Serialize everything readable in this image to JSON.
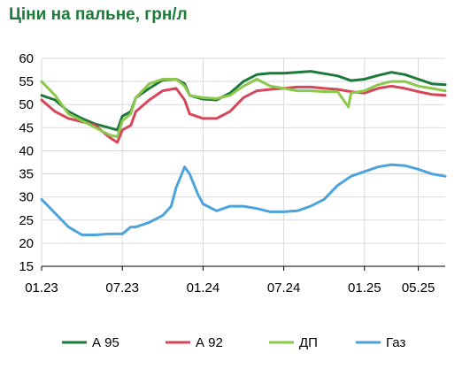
{
  "chart_data": {
    "type": "line",
    "title": "Ціни на пальне, грн/л",
    "xlabel": "",
    "ylabel": "",
    "ylim": [
      15,
      60
    ],
    "yticks": [
      15,
      20,
      25,
      30,
      35,
      40,
      45,
      50,
      55,
      60
    ],
    "xlim": [
      "2023-01",
      "2025-07"
    ],
    "xticks": [
      {
        "label": "01.23",
        "x": "2023-01"
      },
      {
        "label": "07.23",
        "x": "2023-07"
      },
      {
        "label": "01.24",
        "x": "2024-01"
      },
      {
        "label": "07.24",
        "x": "2024-07"
      },
      {
        "label": "01.25",
        "x": "2025-01"
      },
      {
        "label": "05.25",
        "x": "2025-05"
      }
    ],
    "grid": true,
    "legend": "bottom",
    "series": [
      {
        "name": "А 95",
        "color": "#1e7a3a",
        "points": [
          [
            "2023-01",
            52.0
          ],
          [
            "2023-02",
            51.0
          ],
          [
            "2023-03",
            48.5
          ],
          [
            "2023-04",
            47.0
          ],
          [
            "2023-05",
            45.8
          ],
          [
            "2023-06",
            45.0
          ],
          [
            "2023-06-20",
            44.5
          ],
          [
            "2023-07",
            47.5
          ],
          [
            "2023-07-20",
            48.5
          ],
          [
            "2023-08",
            51.5
          ],
          [
            "2023-09",
            53.5
          ],
          [
            "2023-10",
            55.3
          ],
          [
            "2023-11",
            55.5
          ],
          [
            "2023-11-20",
            54.5
          ],
          [
            "2023-12",
            52.0
          ],
          [
            "2024-01",
            51.2
          ],
          [
            "2024-02",
            51.0
          ],
          [
            "2024-03",
            52.5
          ],
          [
            "2024-04",
            55.0
          ],
          [
            "2024-05",
            56.5
          ],
          [
            "2024-06",
            56.8
          ],
          [
            "2024-07",
            56.8
          ],
          [
            "2024-08",
            57.0
          ],
          [
            "2024-09",
            57.2
          ],
          [
            "2024-10",
            56.7
          ],
          [
            "2024-11",
            56.2
          ],
          [
            "2024-12",
            55.2
          ],
          [
            "2025-01",
            55.5
          ],
          [
            "2025-02",
            56.3
          ],
          [
            "2025-03",
            57.0
          ],
          [
            "2025-04",
            56.5
          ],
          [
            "2025-05",
            55.5
          ],
          [
            "2025-06",
            54.5
          ],
          [
            "2025-07",
            54.3
          ]
        ]
      },
      {
        "name": "А 92",
        "color": "#d6465a",
        "points": [
          [
            "2023-01",
            51.0
          ],
          [
            "2023-02",
            48.5
          ],
          [
            "2023-03",
            47.0
          ],
          [
            "2023-04",
            46.3
          ],
          [
            "2023-05",
            45.5
          ],
          [
            "2023-06",
            43.0
          ],
          [
            "2023-06-20",
            41.8
          ],
          [
            "2023-07",
            44.5
          ],
          [
            "2023-07-20",
            45.5
          ],
          [
            "2023-08",
            48.5
          ],
          [
            "2023-09",
            51.0
          ],
          [
            "2023-10",
            53.0
          ],
          [
            "2023-11",
            53.5
          ],
          [
            "2023-11-20",
            51.0
          ],
          [
            "2023-12",
            48.0
          ],
          [
            "2024-01",
            47.0
          ],
          [
            "2024-02",
            47.0
          ],
          [
            "2024-03",
            48.5
          ],
          [
            "2024-04",
            51.5
          ],
          [
            "2024-05",
            53.0
          ],
          [
            "2024-06",
            53.3
          ],
          [
            "2024-07",
            53.5
          ],
          [
            "2024-08",
            53.8
          ],
          [
            "2024-09",
            53.8
          ],
          [
            "2024-10",
            53.5
          ],
          [
            "2024-11",
            53.3
          ],
          [
            "2024-12",
            52.8
          ],
          [
            "2025-01",
            52.5
          ],
          [
            "2025-02",
            53.5
          ],
          [
            "2025-03",
            54.0
          ],
          [
            "2025-04",
            53.5
          ],
          [
            "2025-05",
            52.8
          ],
          [
            "2025-06",
            52.2
          ],
          [
            "2025-07",
            52.0
          ]
        ]
      },
      {
        "name": "ДП",
        "color": "#8cc84b",
        "points": [
          [
            "2023-01",
            55.0
          ],
          [
            "2023-02",
            52.0
          ],
          [
            "2023-03",
            48.0
          ],
          [
            "2023-04",
            46.5
          ],
          [
            "2023-05",
            45.0
          ],
          [
            "2023-06",
            43.5
          ],
          [
            "2023-06-20",
            43.0
          ],
          [
            "2023-07",
            46.5
          ],
          [
            "2023-07-20",
            48.0
          ],
          [
            "2023-08",
            51.5
          ],
          [
            "2023-09",
            54.5
          ],
          [
            "2023-10",
            55.5
          ],
          [
            "2023-11",
            55.5
          ],
          [
            "2023-11-20",
            54.0
          ],
          [
            "2023-12",
            52.0
          ],
          [
            "2024-01",
            51.5
          ],
          [
            "2024-02",
            51.3
          ],
          [
            "2024-03",
            52.0
          ],
          [
            "2024-04",
            54.0
          ],
          [
            "2024-05",
            55.5
          ],
          [
            "2024-06",
            54.0
          ],
          [
            "2024-07",
            53.5
          ],
          [
            "2024-08",
            53.0
          ],
          [
            "2024-09",
            53.0
          ],
          [
            "2024-10",
            52.8
          ],
          [
            "2024-11",
            52.8
          ],
          [
            "2024-11-25",
            49.5
          ],
          [
            "2024-12",
            52.5
          ],
          [
            "2025-01",
            53.0
          ],
          [
            "2025-02",
            54.3
          ],
          [
            "2025-03",
            55.0
          ],
          [
            "2025-04",
            55.0
          ],
          [
            "2025-05",
            54.0
          ],
          [
            "2025-06",
            53.5
          ],
          [
            "2025-07",
            53.0
          ]
        ]
      },
      {
        "name": "Газ",
        "color": "#4da3dc",
        "points": [
          [
            "2023-01",
            29.5
          ],
          [
            "2023-02",
            26.5
          ],
          [
            "2023-03",
            23.5
          ],
          [
            "2023-04",
            21.8
          ],
          [
            "2023-05",
            21.8
          ],
          [
            "2023-06",
            22.0
          ],
          [
            "2023-07",
            22.0
          ],
          [
            "2023-07-20",
            23.5
          ],
          [
            "2023-08",
            23.5
          ],
          [
            "2023-09",
            24.5
          ],
          [
            "2023-10",
            26.0
          ],
          [
            "2023-10-20",
            28.0
          ],
          [
            "2023-11",
            32.0
          ],
          [
            "2023-11-20",
            36.5
          ],
          [
            "2023-12",
            35.0
          ],
          [
            "2023-12-20",
            30.5
          ],
          [
            "2024-01",
            28.5
          ],
          [
            "2024-02",
            27.0
          ],
          [
            "2024-03",
            28.0
          ],
          [
            "2024-04",
            28.0
          ],
          [
            "2024-05",
            27.5
          ],
          [
            "2024-06",
            26.8
          ],
          [
            "2024-07",
            26.8
          ],
          [
            "2024-08",
            27.0
          ],
          [
            "2024-09",
            28.0
          ],
          [
            "2024-10",
            29.5
          ],
          [
            "2024-11",
            32.5
          ],
          [
            "2024-12",
            34.5
          ],
          [
            "2025-01",
            35.5
          ],
          [
            "2025-02",
            36.5
          ],
          [
            "2025-03",
            37.0
          ],
          [
            "2025-04",
            36.8
          ],
          [
            "2025-05",
            36.0
          ],
          [
            "2025-06",
            35.0
          ],
          [
            "2025-07",
            34.5
          ]
        ]
      }
    ]
  }
}
